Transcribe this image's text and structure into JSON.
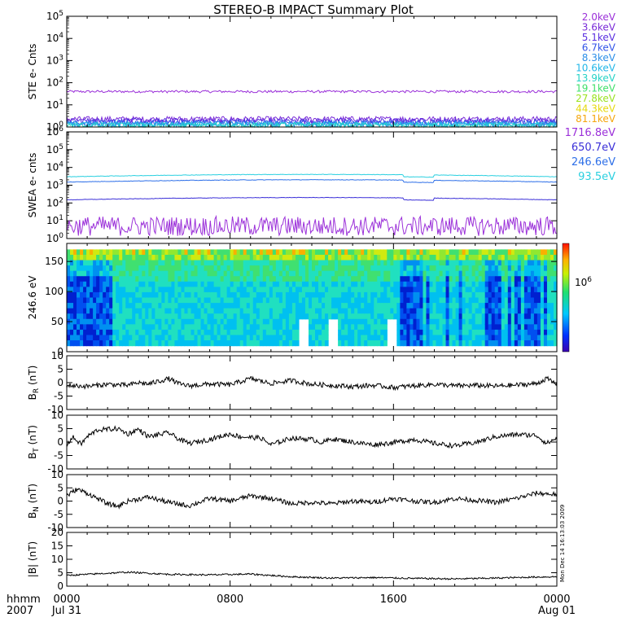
{
  "title": "STEREO-B IMPACT Summary Plot",
  "colors": {
    "ste": [
      "#9b30d9",
      "#7a2bd8",
      "#5a2fe0",
      "#3355e8",
      "#2c8fe8",
      "#22b7e8",
      "#26d3c6",
      "#3fe06a",
      "#9be21f",
      "#e6d90e",
      "#f5a60d",
      "#e85010"
    ],
    "swea": [
      "#9b30d9",
      "#3a2fd8",
      "#2d6fe8",
      "#2bd0e0"
    ]
  },
  "chart_data": [
    {
      "id": "ste",
      "type": "line",
      "ylabel": "STE e- Cnts",
      "yscale": "log",
      "ylim": [
        1,
        100000
      ],
      "yticks": [
        {
          "base": "10",
          "exp": "0"
        },
        {
          "base": "10",
          "exp": "1"
        },
        {
          "base": "10",
          "exp": "2"
        },
        {
          "base": "10",
          "exp": "3"
        },
        {
          "base": "10",
          "exp": "4"
        },
        {
          "base": "10",
          "exp": "5"
        }
      ],
      "legend": [
        "2.0keV",
        "3.6keV",
        "5.1keV",
        "6.7keV",
        "8.3keV",
        "10.6keV",
        "13.9keV",
        "19.1keV",
        "27.8keV",
        "44.3keV",
        "81.1keV"
      ],
      "series_levels": [
        40,
        2.3,
        1.9,
        1.6,
        1.4,
        1.3,
        1.2
      ]
    },
    {
      "id": "swea",
      "type": "line",
      "ylabel": "SWEA e- cnts",
      "yscale": "log",
      "ylim": [
        1,
        1000000
      ],
      "yticks": [
        {
          "base": "10",
          "exp": "0"
        },
        {
          "base": "10",
          "exp": "1"
        },
        {
          "base": "10",
          "exp": "2"
        },
        {
          "base": "10",
          "exp": "3"
        },
        {
          "base": "10",
          "exp": "4"
        },
        {
          "base": "10",
          "exp": "5"
        },
        {
          "base": "10",
          "exp": "6"
        }
      ],
      "legend": [
        "1716.8eV",
        "650.7eV",
        "246.6eV",
        "93.5eV"
      ],
      "series_levels": [
        5,
        150,
        1500,
        3000
      ]
    },
    {
      "id": "pad",
      "type": "heatmap",
      "ylabel": "246.6 eV",
      "ylim": [
        0,
        180
      ],
      "yticks": [
        "0",
        "50",
        "100",
        "150"
      ],
      "colorbar_label": {
        "base": "10",
        "exp": "6"
      }
    },
    {
      "id": "br",
      "type": "line",
      "ylabel": {
        "main": "B",
        "sub": "R",
        "unit": " (nT)"
      },
      "ylim": [
        -10,
        10
      ],
      "yticks": [
        "-10",
        "-5",
        "0",
        "5",
        "10"
      ],
      "points": [
        [
          0,
          -1
        ],
        [
          1,
          -1.4
        ],
        [
          2,
          -0.6
        ],
        [
          3,
          -1
        ],
        [
          3.5,
          0
        ],
        [
          4,
          -0.5
        ],
        [
          5,
          1.5
        ],
        [
          5.5,
          -0.5
        ],
        [
          6,
          -1.2
        ],
        [
          7,
          -0.5
        ],
        [
          8,
          -0.8
        ],
        [
          9,
          1.5
        ],
        [
          10,
          -0.3
        ],
        [
          11,
          0.8
        ],
        [
          12,
          -0.6
        ],
        [
          13,
          -1
        ],
        [
          14,
          -1.5
        ],
        [
          15,
          -1
        ],
        [
          16,
          -1.8
        ],
        [
          17,
          -1.2
        ],
        [
          18,
          -0.6
        ],
        [
          19,
          -1.2
        ],
        [
          20,
          -1
        ],
        [
          21,
          -1.3
        ],
        [
          22,
          -0.9
        ],
        [
          23,
          -0.4
        ],
        [
          23.5,
          1.5
        ],
        [
          24,
          -0.5
        ]
      ]
    },
    {
      "id": "bt",
      "type": "line",
      "ylabel": {
        "main": "B",
        "sub": "T",
        "unit": " (nT)"
      },
      "ylim": [
        -10,
        10
      ],
      "yticks": [
        "-10",
        "-5",
        "0",
        "5",
        "10"
      ],
      "points": [
        [
          0,
          -1
        ],
        [
          0.3,
          1.8
        ],
        [
          0.7,
          -0.8
        ],
        [
          1,
          2
        ],
        [
          1.5,
          4.5
        ],
        [
          2.5,
          5
        ],
        [
          3,
          3
        ],
        [
          3.5,
          4.8
        ],
        [
          4,
          2
        ],
        [
          5,
          3.5
        ],
        [
          5.5,
          1
        ],
        [
          6,
          -0.5
        ],
        [
          7,
          1
        ],
        [
          8,
          3
        ],
        [
          8.5,
          2
        ],
        [
          9.5,
          1.5
        ],
        [
          10,
          -1
        ],
        [
          11,
          1.5
        ],
        [
          12,
          1
        ],
        [
          12.5,
          -0.2
        ],
        [
          13,
          1.2
        ],
        [
          14,
          0
        ],
        [
          15,
          -1
        ],
        [
          16,
          -0.2
        ],
        [
          17,
          1
        ],
        [
          18,
          -0.5
        ],
        [
          19,
          -1.4
        ],
        [
          20,
          -0.2
        ],
        [
          21,
          2
        ],
        [
          22,
          2.8
        ],
        [
          23,
          2.5
        ],
        [
          23.5,
          -0.5
        ],
        [
          24,
          1.5
        ]
      ]
    },
    {
      "id": "bn",
      "type": "line",
      "ylabel": {
        "main": "B",
        "sub": "N",
        "unit": " (nT)"
      },
      "ylim": [
        -10,
        10
      ],
      "yticks": [
        "-10",
        "-5",
        "0",
        "5",
        "10"
      ],
      "points": [
        [
          0,
          2
        ],
        [
          0.5,
          4.5
        ],
        [
          1,
          3
        ],
        [
          2,
          -1
        ],
        [
          2.5,
          -2
        ],
        [
          3,
          0
        ],
        [
          4,
          1.5
        ],
        [
          5,
          -0.5
        ],
        [
          6,
          -1.8
        ],
        [
          7,
          1
        ],
        [
          8,
          0
        ],
        [
          9,
          2
        ],
        [
          10,
          1
        ],
        [
          11,
          -1
        ],
        [
          12,
          -0.5
        ],
        [
          13,
          -1
        ],
        [
          14,
          0
        ],
        [
          15,
          -0.5
        ],
        [
          16,
          1
        ],
        [
          17,
          0
        ],
        [
          18,
          -0.5
        ],
        [
          19,
          1
        ],
        [
          20,
          0.3
        ],
        [
          21,
          -0.5
        ],
        [
          22,
          1
        ],
        [
          23,
          3
        ],
        [
          24,
          2.5
        ]
      ]
    },
    {
      "id": "bmag",
      "type": "line",
      "ylabel": "|B| (nT)",
      "ylim": [
        0,
        20
      ],
      "yticks": [
        "0",
        "5",
        "10",
        "15",
        "20"
      ],
      "points": [
        [
          0,
          4
        ],
        [
          2,
          4.8
        ],
        [
          3,
          5.2
        ],
        [
          5,
          4.4
        ],
        [
          7,
          4.2
        ],
        [
          9,
          4.5
        ],
        [
          11,
          3.5
        ],
        [
          13,
          3
        ],
        [
          15,
          3.2
        ],
        [
          17,
          2.9
        ],
        [
          19,
          2.7
        ],
        [
          21,
          3
        ],
        [
          23,
          3.4
        ],
        [
          24,
          3.5
        ]
      ]
    }
  ],
  "xaxis": {
    "range_hours": [
      0,
      24
    ],
    "ticks": [
      {
        "hour": 0,
        "label": "0000"
      },
      {
        "hour": 8,
        "label": "0800"
      },
      {
        "hour": 16,
        "label": "1600"
      },
      {
        "hour": 24,
        "label": "0000"
      }
    ],
    "sub_labels": {
      "start": "Jul 31",
      "end": "Aug 01"
    },
    "unit_label": "hhmm",
    "year_label": "2007"
  },
  "side_label": "Mon Dec 14 16:13:03 2009"
}
